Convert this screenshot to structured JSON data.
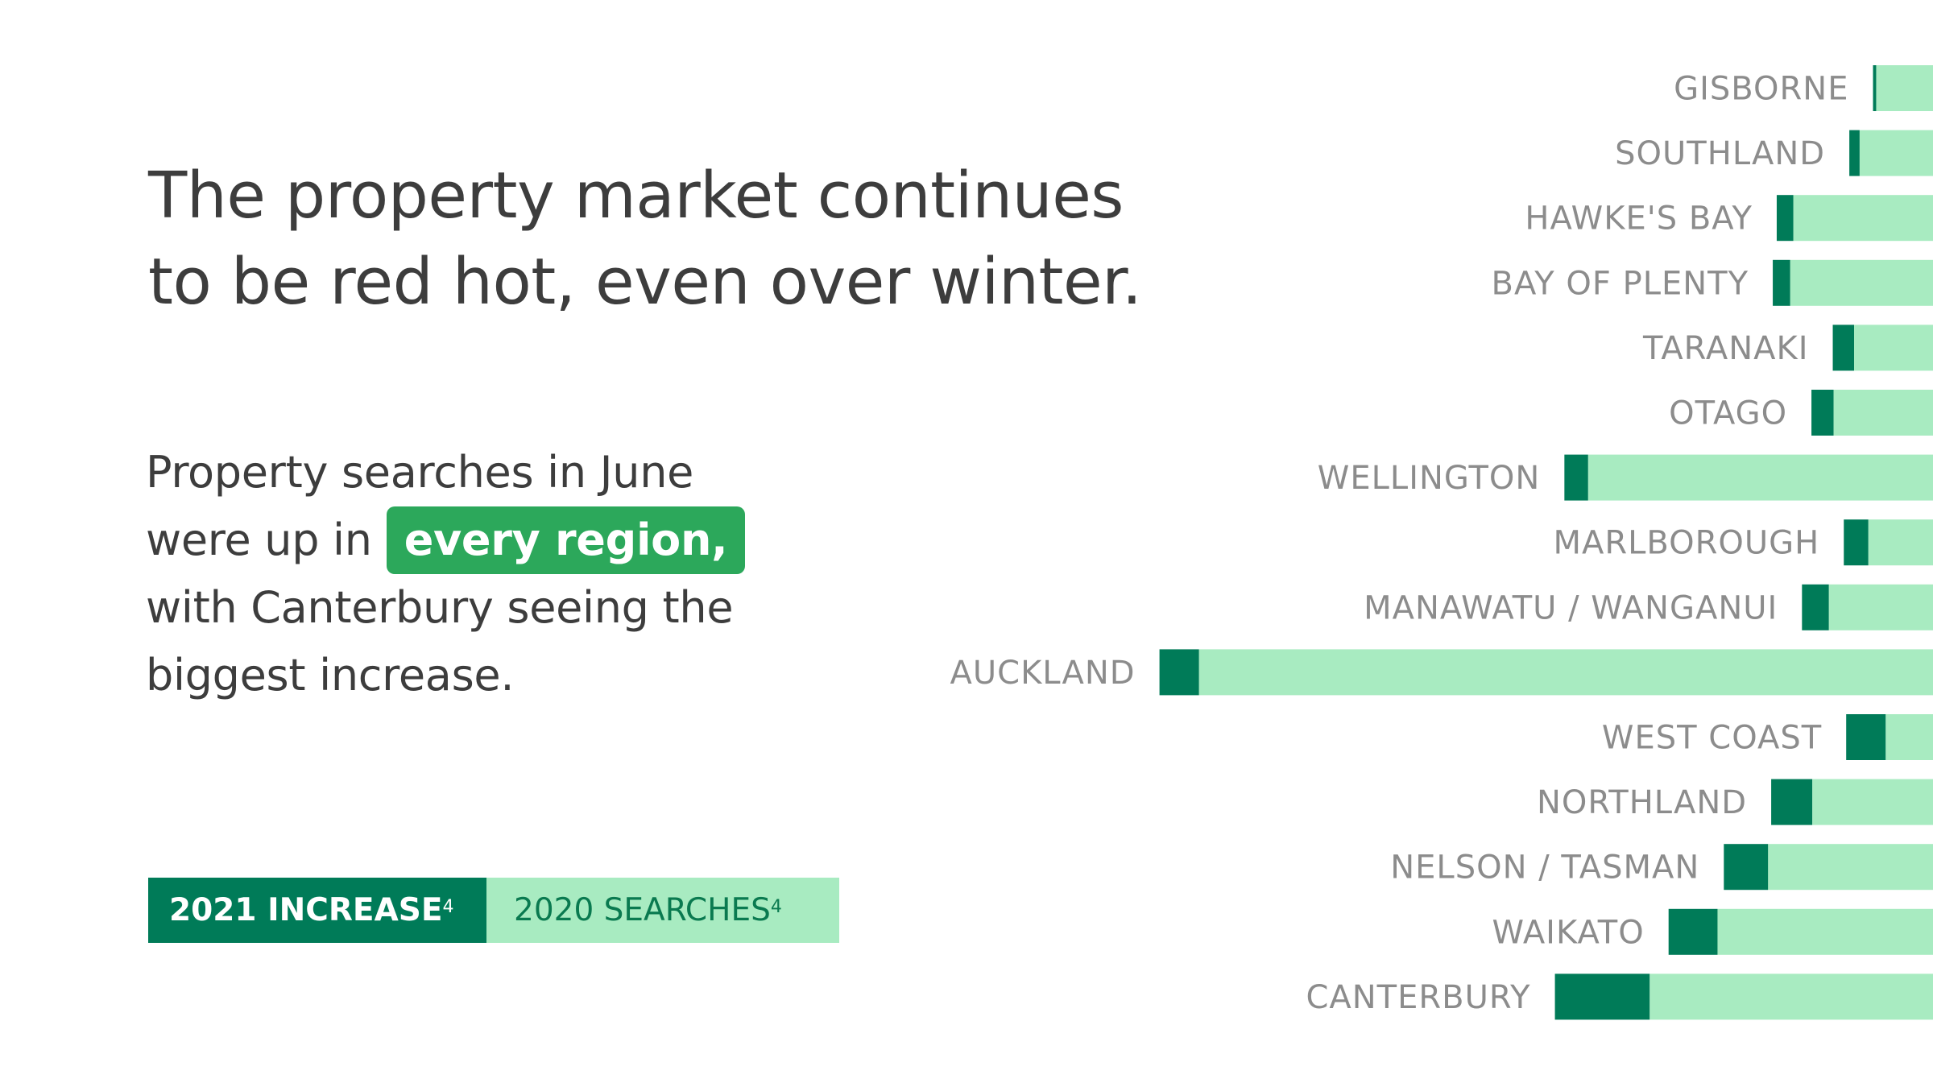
{
  "headline": {
    "line1": "The property market continues",
    "line2": "to be red hot, even over winter."
  },
  "body": {
    "line1": "Property searches in June",
    "line2_prefix": "were up in",
    "highlight": "every region,",
    "line3": "with Canterbury seeing the",
    "line4": "biggest increase."
  },
  "legend": {
    "increase_label": "2021 INCREASE",
    "increase_sup": "4",
    "searches_label": "2020 SEARCHES",
    "searches_sup": "4"
  },
  "colors": {
    "increase": "#007b58",
    "searches": "#a8ebc1",
    "highlight": "#2ca85b",
    "label": "#8c8c8c",
    "text": "#3d3d3d"
  },
  "chart_data": {
    "type": "bar",
    "orientation": "horizontal",
    "stacked": true,
    "categories": [
      "GISBORNE",
      "SOUTHLAND",
      "HAWKE'S BAY",
      "BAY OF PLENTY",
      "TARANAKI",
      "OTAGO",
      "WELLINGTON",
      "MARLBOROUGH",
      "MANAWATU / WANGANUI",
      "AUCKLAND",
      "WEST COAST",
      "NORTHLAND",
      "NELSON / TASMAN",
      "WAIKATO",
      "CANTERBURY"
    ],
    "series": [
      {
        "name": "2021 INCREASE",
        "values": [
          4,
          13,
          21,
          22,
          27,
          28,
          30,
          31,
          34,
          50,
          50,
          52,
          56,
          62,
          120
        ]
      },
      {
        "name": "2020 SEARCHES",
        "values": [
          72,
          93,
          177,
          181,
          100,
          126,
          437,
          82,
          132,
          930,
          60,
          153,
          209,
          273,
          359
        ]
      }
    ],
    "axis_visible": false,
    "grid": false
  }
}
